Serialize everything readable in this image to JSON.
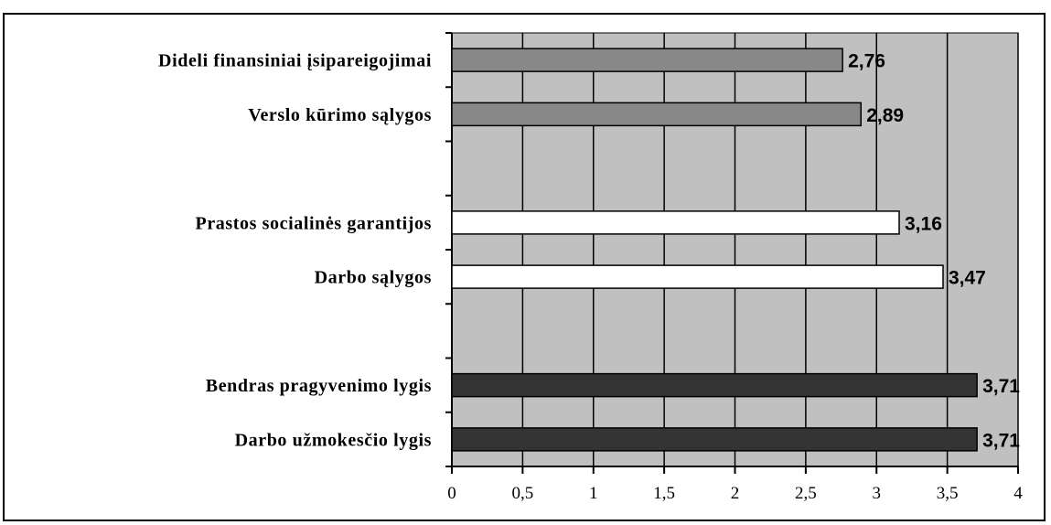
{
  "chart_data": {
    "type": "bar",
    "orientation": "horizontal",
    "categories": [
      "Dideli finansiniai įsipareigojimai",
      "Verslo kūrimo sąlygos",
      "",
      "Prastos socialinės garantijos",
      "Darbo sąlygos",
      "",
      "Bendras pragyvenimo lygis",
      "Darbo užmokesčio lygis"
    ],
    "values": [
      2.76,
      2.89,
      null,
      3.16,
      3.47,
      null,
      3.71,
      3.71
    ],
    "data_labels": [
      "2,76",
      "2,89",
      "",
      "3,16",
      "3,47",
      "",
      "3,71",
      "3,71"
    ],
    "bar_colors": [
      "#888888",
      "#888888",
      "",
      "#ffffff",
      "#ffffff",
      "",
      "#333333",
      "#333333"
    ],
    "xlim": [
      0,
      4
    ],
    "x_ticks": [
      0,
      0.5,
      1,
      1.5,
      2,
      2.5,
      3,
      3.5,
      4
    ],
    "x_tick_labels": [
      "0",
      "0,5",
      "1",
      "1,5",
      "2",
      "2,5",
      "3",
      "3,5",
      "4"
    ],
    "plot_background": "#c0c0c0",
    "grid": true,
    "title": "",
    "xlabel": "",
    "ylabel": ""
  }
}
